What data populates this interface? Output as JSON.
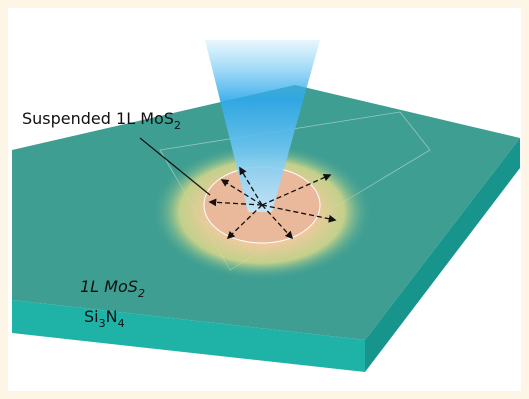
{
  "labels": {
    "suspended": {
      "text": "Suspended 1L MoS",
      "sub": "2"
    },
    "monolayer": {
      "text": "1L MoS",
      "sub": "2"
    },
    "substrate": {
      "parts": [
        "Si",
        "3",
        "N",
        "4"
      ]
    }
  }
}
